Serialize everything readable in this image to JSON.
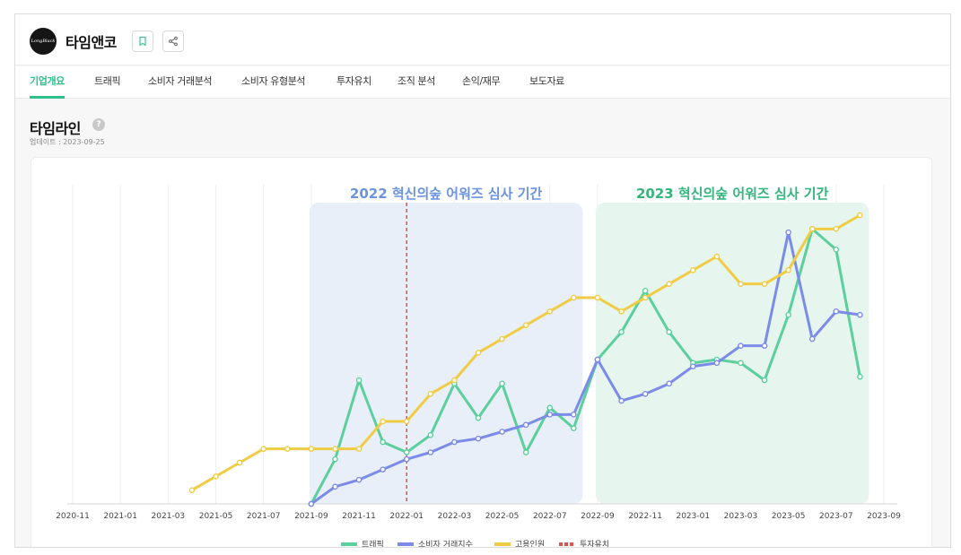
{
  "company": {
    "logo_text": "LongBlack",
    "name": "타임앤코"
  },
  "header": {
    "bookmark_icon": "bookmark-icon",
    "share_icon": "share-icon"
  },
  "tabs": [
    {
      "label": "기업개요",
      "active": true
    },
    {
      "label": "트래픽",
      "active": false
    },
    {
      "label": "소비자 거래분석",
      "active": false
    },
    {
      "label": "소비자 유형분석",
      "active": false
    },
    {
      "label": "투자유치",
      "active": false
    },
    {
      "label": "조직 분석",
      "active": false
    },
    {
      "label": "손익/재무",
      "active": false
    },
    {
      "label": "보도자료",
      "active": false
    }
  ],
  "section": {
    "title": "타임라인",
    "help_icon": "help-icon",
    "updated": "업데이트 : 2023-09-25"
  },
  "chart_data": {
    "type": "line",
    "x_ticks": [
      "2020-11",
      "2021-01",
      "2021-03",
      "2021-05",
      "2021-07",
      "2021-09",
      "2021-11",
      "2022-01",
      "2022-03",
      "2022-05",
      "2022-07",
      "2022-09",
      "2022-11",
      "2023-01",
      "2023-03",
      "2023-05",
      "2023-07",
      "2023-09"
    ],
    "x_range": [
      "2020-11",
      "2023-09"
    ],
    "grid": "vertical",
    "legend_position": "bottom-center",
    "y_axis_labels": "none",
    "periods": [
      {
        "label": "2022 혁신의숲 어워즈 심사 기간",
        "start": "2021-09",
        "end": "2022-08",
        "fill": "#e9eff9",
        "text_color": "#6b93e0"
      },
      {
        "label": "2023 혁신의숲 어워즈 심사 기간",
        "start": "2022-09",
        "end": "2023-08",
        "fill": "#e6f5ee",
        "text_color": "#35b57d"
      }
    ],
    "events": [
      {
        "name": "투자유치",
        "date": "2022-01",
        "color": "#d9534f"
      }
    ],
    "series": [
      {
        "name": "트래픽",
        "color": "#5bcf9c",
        "points": [
          [
            "2021-09",
            0
          ],
          [
            "2021-10",
            13
          ],
          [
            "2021-11",
            36
          ],
          [
            "2021-12",
            18
          ],
          [
            "2022-01",
            15
          ],
          [
            "2022-02",
            20
          ],
          [
            "2022-03",
            35
          ],
          [
            "2022-04",
            25
          ],
          [
            "2022-05",
            35
          ],
          [
            "2022-06",
            15
          ],
          [
            "2022-07",
            28
          ],
          [
            "2022-08",
            22
          ],
          [
            "2022-09",
            42
          ],
          [
            "2022-10",
            50
          ],
          [
            "2022-11",
            62
          ],
          [
            "2022-12",
            50
          ],
          [
            "2023-01",
            41
          ],
          [
            "2023-02",
            42
          ],
          [
            "2023-03",
            41
          ],
          [
            "2023-04",
            36
          ],
          [
            "2023-05",
            55
          ],
          [
            "2023-06",
            80
          ],
          [
            "2023-07",
            74
          ],
          [
            "2023-08",
            37
          ]
        ]
      },
      {
        "name": "소비자 거래지수",
        "color": "#7b8be8",
        "points": [
          [
            "2021-09",
            0
          ],
          [
            "2021-10",
            5
          ],
          [
            "2021-11",
            7
          ],
          [
            "2021-12",
            10
          ],
          [
            "2022-01",
            13
          ],
          [
            "2022-02",
            15
          ],
          [
            "2022-03",
            18
          ],
          [
            "2022-04",
            19
          ],
          [
            "2022-05",
            21
          ],
          [
            "2022-06",
            23
          ],
          [
            "2022-07",
            26
          ],
          [
            "2022-08",
            26
          ],
          [
            "2022-09",
            42
          ],
          [
            "2022-10",
            30
          ],
          [
            "2022-11",
            32
          ],
          [
            "2022-12",
            35
          ],
          [
            "2023-01",
            40
          ],
          [
            "2023-02",
            41
          ],
          [
            "2023-03",
            46
          ],
          [
            "2023-04",
            46
          ],
          [
            "2023-05",
            79
          ],
          [
            "2023-06",
            48
          ],
          [
            "2023-07",
            56
          ],
          [
            "2023-08",
            55
          ]
        ]
      },
      {
        "name": "고용인원",
        "color": "#f0cc44",
        "points": [
          [
            "2021-04",
            4
          ],
          [
            "2021-05",
            8
          ],
          [
            "2021-06",
            12
          ],
          [
            "2021-07",
            16
          ],
          [
            "2021-08",
            16
          ],
          [
            "2021-09",
            16
          ],
          [
            "2021-10",
            16
          ],
          [
            "2021-11",
            16
          ],
          [
            "2021-12",
            24
          ],
          [
            "2022-01",
            24
          ],
          [
            "2022-02",
            32
          ],
          [
            "2022-03",
            36
          ],
          [
            "2022-04",
            44
          ],
          [
            "2022-05",
            48
          ],
          [
            "2022-06",
            52
          ],
          [
            "2022-07",
            56
          ],
          [
            "2022-08",
            60
          ],
          [
            "2022-09",
            60
          ],
          [
            "2022-10",
            56
          ],
          [
            "2022-11",
            60
          ],
          [
            "2022-12",
            64
          ],
          [
            "2023-01",
            68
          ],
          [
            "2023-02",
            72
          ],
          [
            "2023-03",
            64
          ],
          [
            "2023-04",
            64
          ],
          [
            "2023-05",
            68
          ],
          [
            "2023-06",
            80
          ],
          [
            "2023-07",
            80
          ],
          [
            "2023-08",
            84
          ]
        ]
      }
    ]
  }
}
